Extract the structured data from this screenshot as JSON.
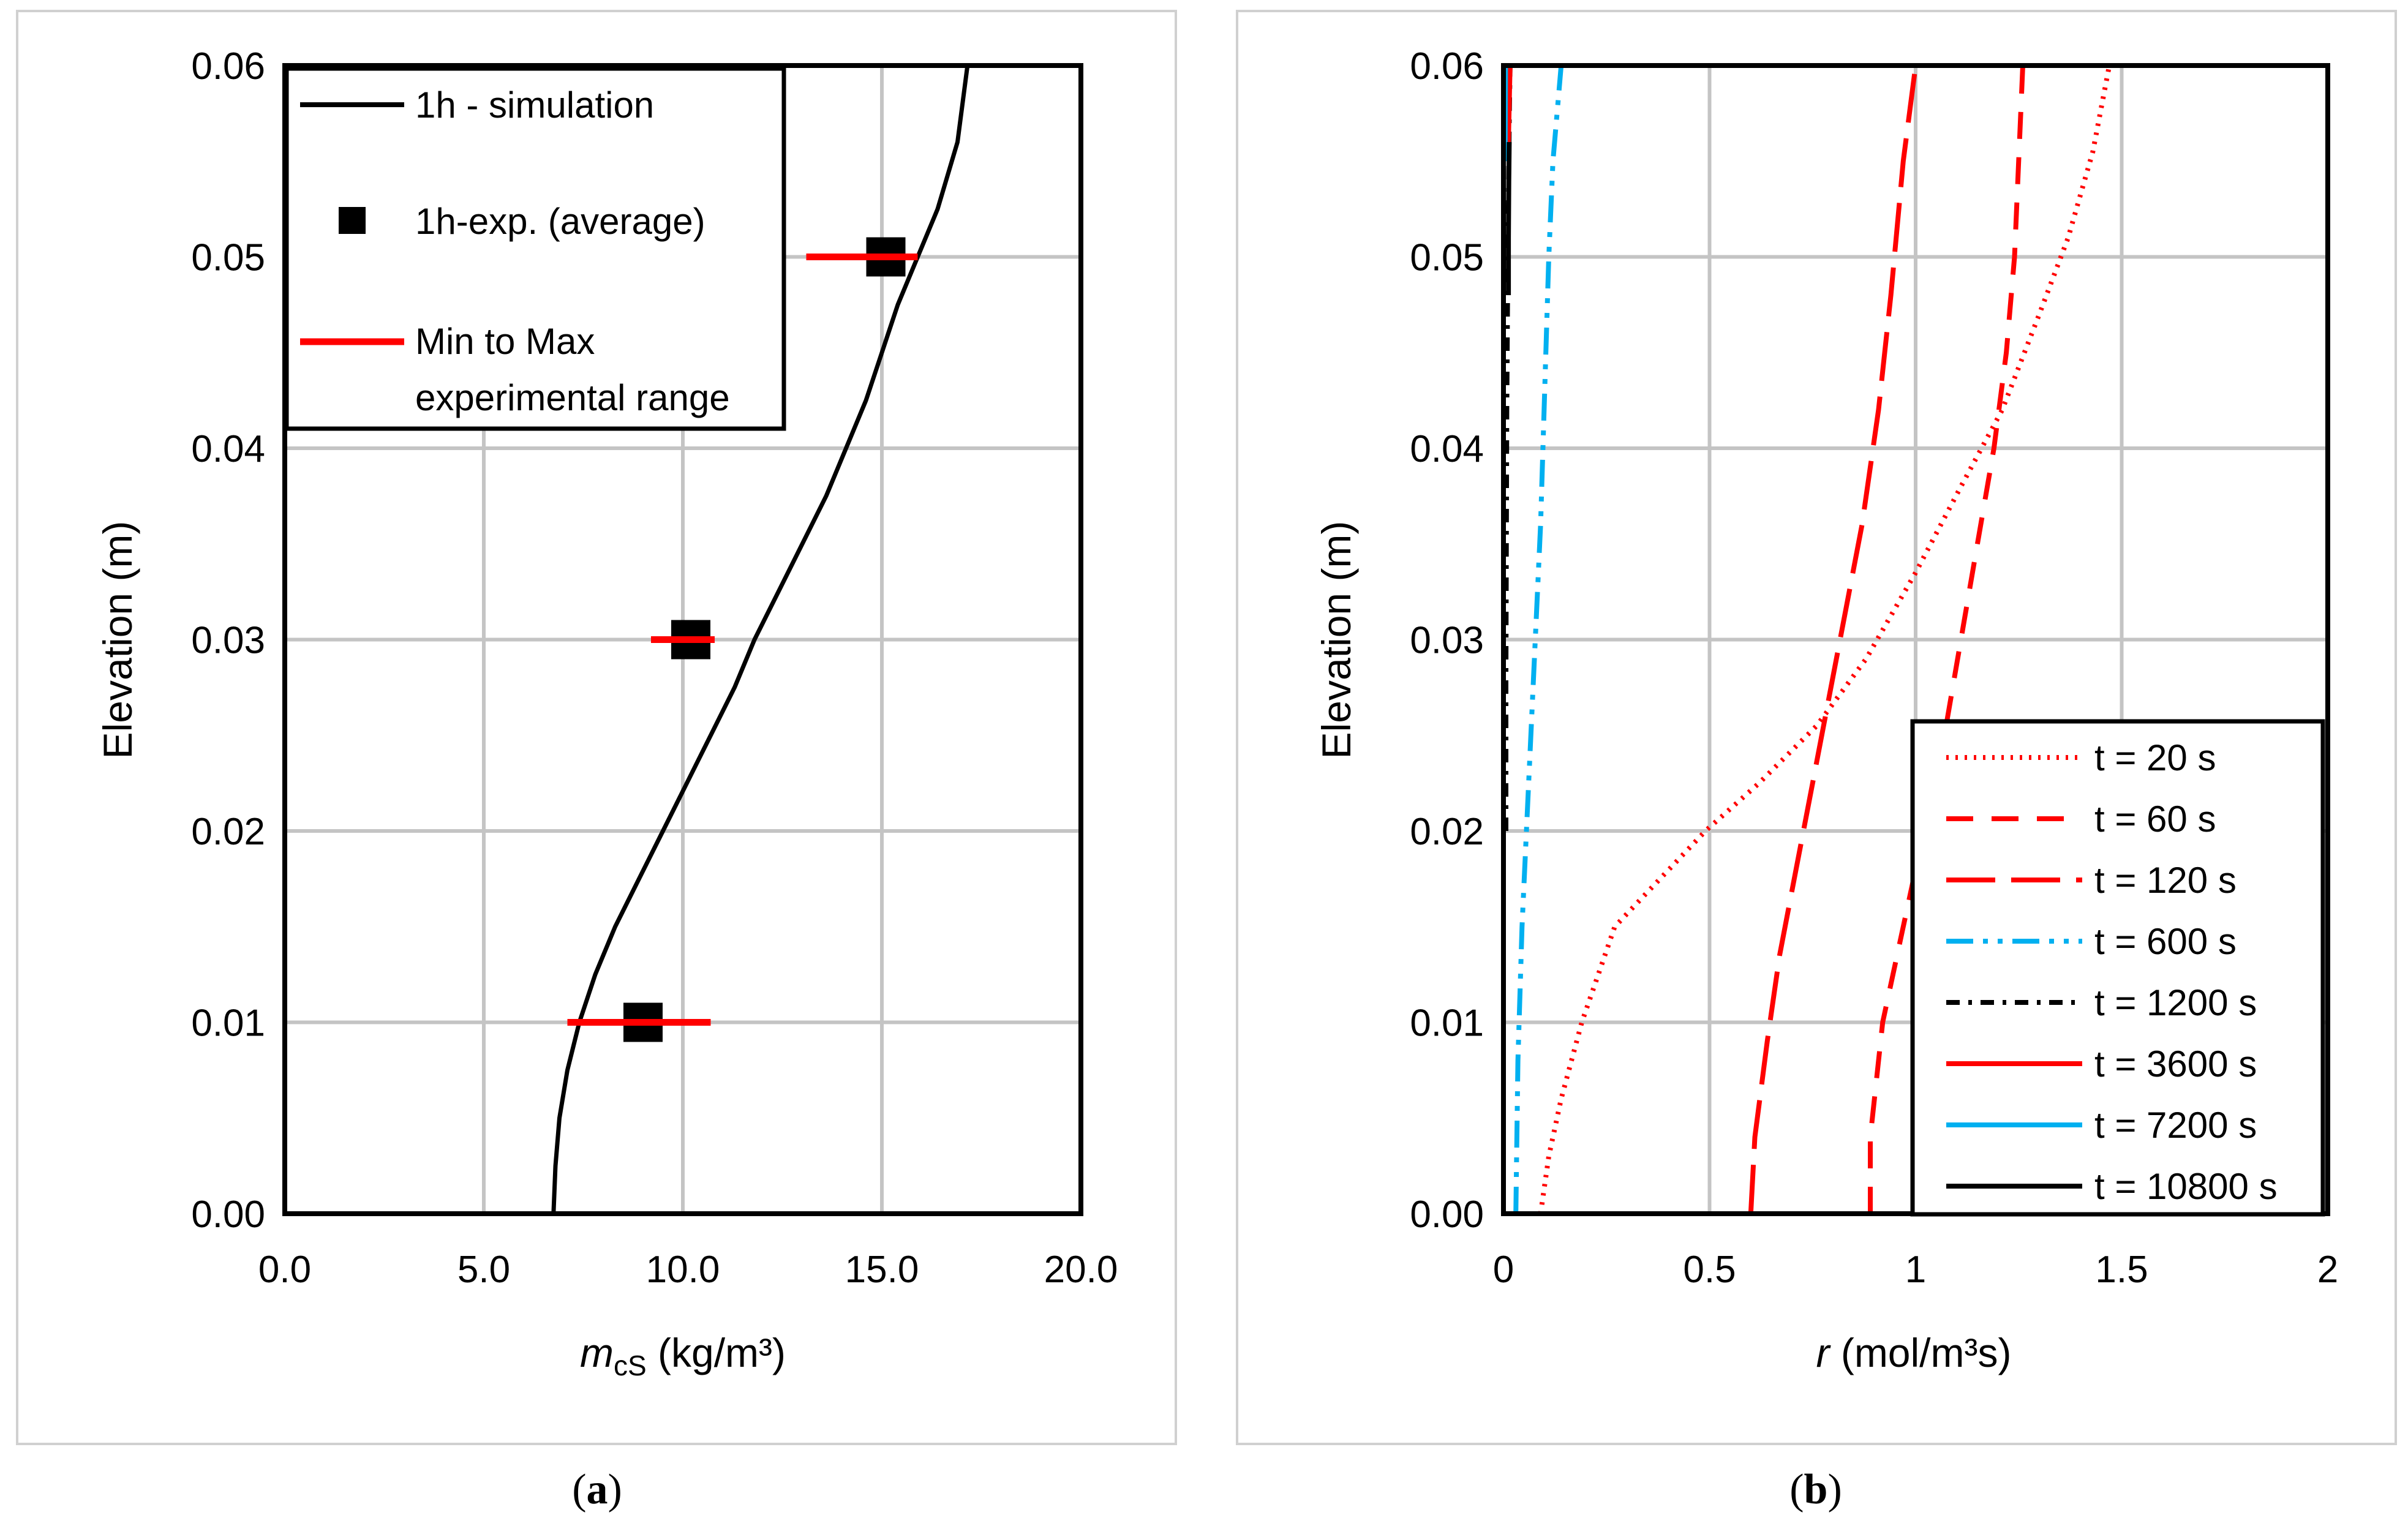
{
  "chart_data": [
    {
      "panel": "a",
      "type": "line",
      "caption": {
        "open": "(",
        "letter": "a",
        "close": ")"
      },
      "xlabel_italic": "m",
      "xlabel_sub": "cS",
      "xlabel_rest": " (kg/m³)",
      "ylabel": "Elevation (m)",
      "xlim": [
        0,
        20
      ],
      "ylim": [
        0,
        0.06
      ],
      "xticks": [
        0,
        5,
        10,
        15,
        20
      ],
      "xtick_labels": [
        "0.0",
        "5.0",
        "10.0",
        "15.0",
        "20.0"
      ],
      "yticks": [
        0,
        0.01,
        0.02,
        0.03,
        0.04,
        0.05,
        0.06
      ],
      "ytick_labels": [
        "0.00",
        "0.01",
        "0.02",
        "0.03",
        "0.04",
        "0.05",
        "0.06"
      ],
      "grid": true,
      "legend_position": "top-left",
      "series": [
        {
          "name": "1h - simulation",
          "color": "#000000",
          "style": "solid",
          "x": [
            6.75,
            6.8,
            6.9,
            7.1,
            7.4,
            7.8,
            8.3,
            8.9,
            9.5,
            10.1,
            10.7,
            11.3,
            11.8,
            12.4,
            13.0,
            13.6,
            14.1,
            14.6,
            15.0,
            15.4,
            15.9,
            16.4,
            16.9,
            17.15
          ],
          "y": [
            0,
            0.0025,
            0.005,
            0.0075,
            0.01,
            0.0125,
            0.015,
            0.0175,
            0.02,
            0.0225,
            0.025,
            0.0275,
            0.03,
            0.0325,
            0.035,
            0.0375,
            0.04,
            0.0425,
            0.045,
            0.0475,
            0.05,
            0.0525,
            0.056,
            0.06
          ]
        },
        {
          "name": "1h-exp. (average)",
          "color": "#000000",
          "style": "marker",
          "x": [
            9.0,
            10.2,
            15.1
          ],
          "y": [
            0.01,
            0.03,
            0.05
          ]
        },
        {
          "name": "Min to Max experimental range",
          "label_lines": [
            "Min to Max",
            "experimental range"
          ],
          "color": "#ff0000",
          "style": "range",
          "x_min": [
            7.1,
            9.2,
            13.1
          ],
          "x_max": [
            10.7,
            10.8,
            15.9
          ],
          "y": [
            0.01,
            0.03,
            0.05
          ]
        }
      ]
    },
    {
      "panel": "b",
      "type": "line",
      "caption": {
        "open": "(",
        "letter": "b",
        "close": ")"
      },
      "xlabel_italic": "r",
      "xlabel_rest": " (mol/m³s)",
      "ylabel": "Elevation (m)",
      "xlim": [
        0,
        2
      ],
      "ylim": [
        0,
        0.06
      ],
      "xticks": [
        0,
        0.5,
        1,
        1.5,
        2
      ],
      "xtick_labels": [
        "0",
        "0.5",
        "1",
        "1.5",
        "2"
      ],
      "yticks": [
        0,
        0.01,
        0.02,
        0.03,
        0.04,
        0.05,
        0.06
      ],
      "ytick_labels": [
        "0.00",
        "0.01",
        "0.02",
        "0.03",
        "0.04",
        "0.05",
        "0.06"
      ],
      "grid": true,
      "legend_position": "bottom-right",
      "series": [
        {
          "name": "t = 20 s",
          "color": "#ff0000",
          "style": "dotted",
          "x": [
            0.09,
            0.11,
            0.14,
            0.19,
            0.27,
            0.38,
            0.49,
            0.62,
            0.76,
            0.88,
            1.0,
            1.11,
            1.21,
            1.3,
            1.37,
            1.43,
            1.47
          ],
          "y": [
            0,
            0.003,
            0.006,
            0.01,
            0.015,
            0.0175,
            0.02,
            0.0225,
            0.0255,
            0.029,
            0.0335,
            0.038,
            0.042,
            0.047,
            0.051,
            0.0555,
            0.06
          ]
        },
        {
          "name": "t = 60 s",
          "color": "#ff0000",
          "style": "dashed",
          "x": [
            0.89,
            0.89,
            0.92,
            0.97,
            1.02,
            1.07,
            1.11,
            1.15,
            1.19,
            1.22,
            1.24,
            1.26
          ],
          "y": [
            0,
            0.004,
            0.01,
            0.015,
            0.02,
            0.025,
            0.03,
            0.035,
            0.04,
            0.045,
            0.05,
            0.06
          ]
        },
        {
          "name": "t = 120 s",
          "color": "#ff0000",
          "style": "longdash",
          "x": [
            0.6,
            0.61,
            0.64,
            0.67,
            0.71,
            0.75,
            0.79,
            0.83,
            0.87,
            0.91,
            0.94,
            0.97,
            1.0
          ],
          "y": [
            0,
            0.004,
            0.009,
            0.0135,
            0.018,
            0.0225,
            0.027,
            0.0315,
            0.036,
            0.042,
            0.048,
            0.055,
            0.06
          ]
        },
        {
          "name": "t = 600 s",
          "color": "#00b0f0",
          "style": "dashdotdot",
          "x": [
            0.03,
            0.035,
            0.045,
            0.06,
            0.075,
            0.09,
            0.1,
            0.11,
            0.12,
            0.14
          ],
          "y": [
            0,
            0.008,
            0.015,
            0.022,
            0.029,
            0.036,
            0.043,
            0.05,
            0.055,
            0.06
          ]
        },
        {
          "name": "t = 1200 s",
          "color": "#000000",
          "style": "dashdot",
          "x": [
            0.006,
            0.006,
            0.007,
            0.008,
            0.01,
            0.012,
            0.014,
            0.016
          ],
          "y": [
            0.02,
            0.028,
            0.035,
            0.042,
            0.048,
            0.053,
            0.057,
            0.06
          ]
        },
        {
          "name": "t = 3600 s",
          "color": "#ff0000",
          "style": "solid",
          "x": [
            0.012,
            0.014,
            0.016
          ],
          "y": [
            0.056,
            0.058,
            0.06
          ]
        },
        {
          "name": "t = 7200 s",
          "color": "#00b0f0",
          "style": "solid",
          "x": [
            0.004,
            0.005
          ],
          "y": [
            0.055,
            0.06
          ]
        },
        {
          "name": "t = 10800 s",
          "color": "#000000",
          "style": "solid",
          "x": [
            0.012,
            0.012,
            0.013,
            0.014
          ],
          "y": [
            0.048,
            0.051,
            0.054,
            0.056
          ]
        }
      ]
    }
  ]
}
